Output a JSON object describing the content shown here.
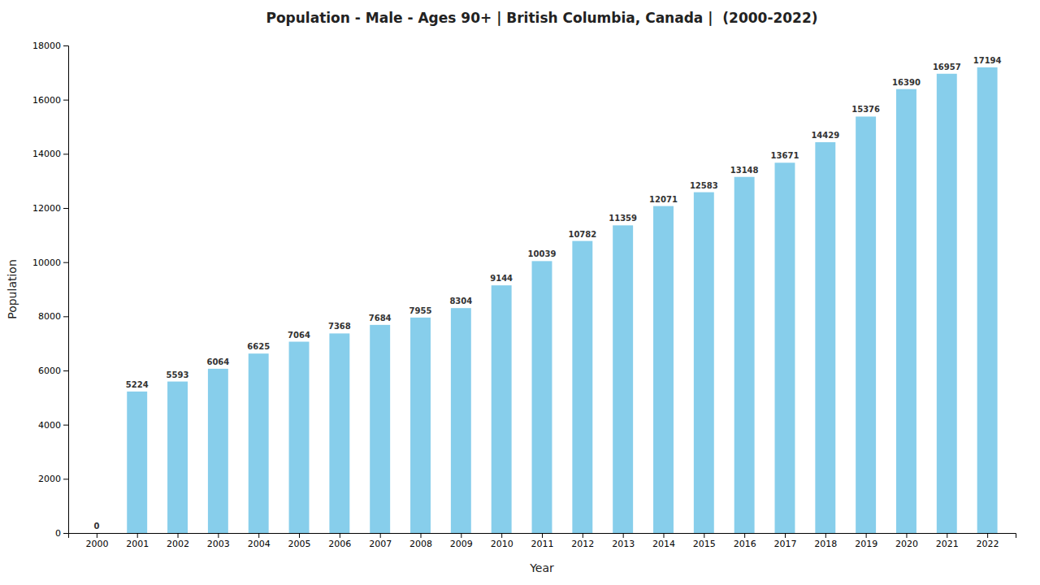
{
  "chart_data": {
    "type": "bar",
    "title": "Population - Male - Ages 90+ | British Columbia, Canada |  (2000-2022)",
    "xlabel": "Year",
    "ylabel": "Population",
    "x": [
      2000,
      2001,
      2002,
      2003,
      2004,
      2005,
      2006,
      2007,
      2008,
      2009,
      2010,
      2011,
      2012,
      2013,
      2014,
      2015,
      2016,
      2017,
      2018,
      2019,
      2020,
      2021,
      2022
    ],
    "values": [
      0,
      5224,
      5593,
      6064,
      6625,
      7064,
      7368,
      7684,
      7955,
      8304,
      9144,
      10039,
      10782,
      11359,
      12071,
      12583,
      13148,
      13671,
      14429,
      15376,
      16390,
      16957,
      17194
    ],
    "color": "#87CEEB",
    "xlim": [
      1999.3,
      2022.7
    ],
    "xticks": [
      2000,
      2001,
      2002,
      2003,
      2004,
      2005,
      2006,
      2007,
      2008,
      2009,
      2010,
      2011,
      2012,
      2013,
      2014,
      2015,
      2016,
      2017,
      2018,
      2019,
      2020,
      2021,
      2022
    ],
    "ylim": [
      0,
      18000
    ],
    "yticks": [
      0,
      2000,
      4000,
      6000,
      8000,
      10000,
      12000,
      14000,
      16000,
      18000
    ],
    "grid": false,
    "data_labels": true
  }
}
